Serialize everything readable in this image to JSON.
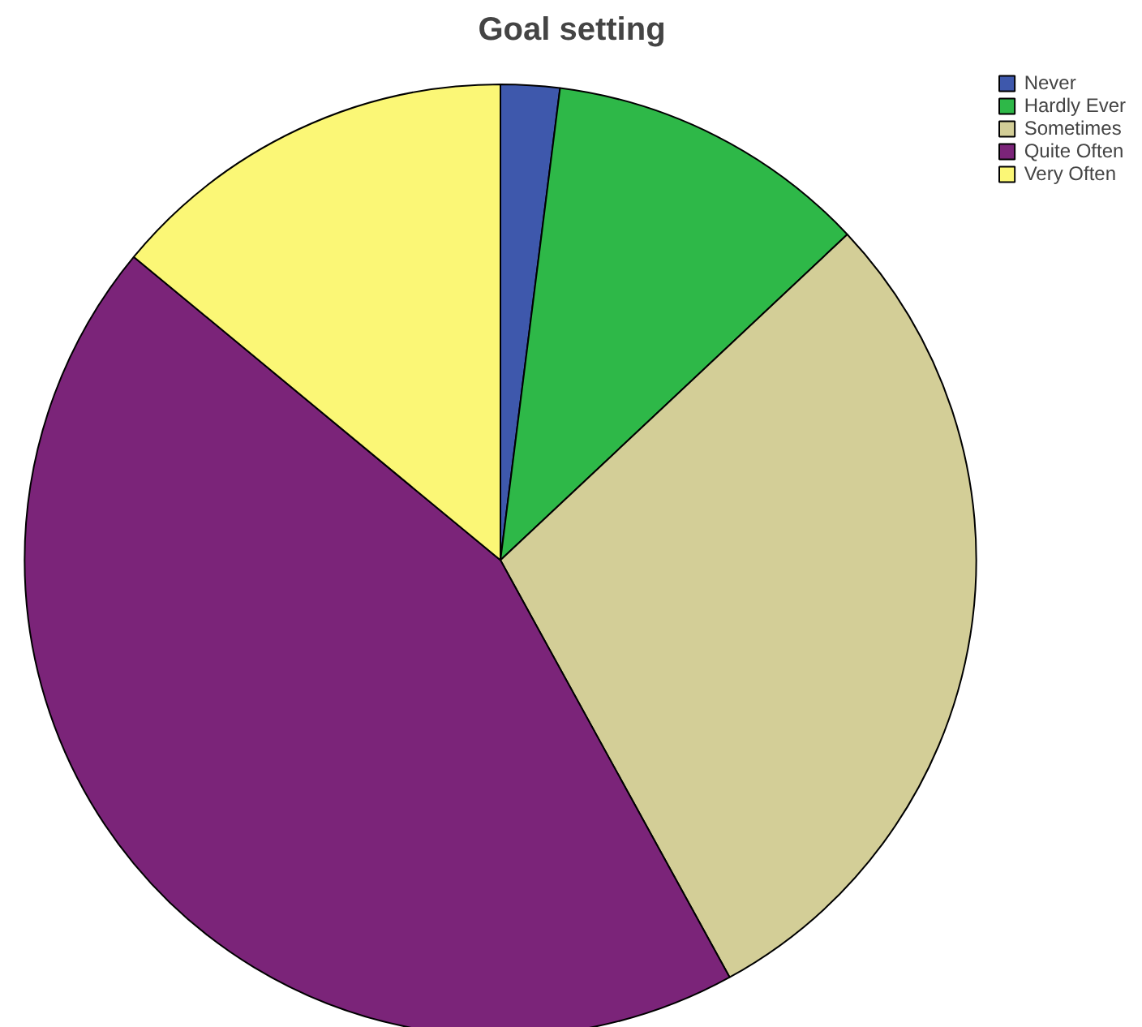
{
  "chart_data": {
    "type": "pie",
    "title": "Goal setting",
    "categories": [
      "Never",
      "Hardly Ever",
      "Sometimes",
      "Quite Often",
      "Very Often"
    ],
    "values": [
      2,
      11,
      29,
      44,
      14
    ],
    "colors": [
      "#3e58ac",
      "#2eb848",
      "#d3ce97",
      "#7b2479",
      "#fbf776"
    ],
    "legend": "top right"
  }
}
